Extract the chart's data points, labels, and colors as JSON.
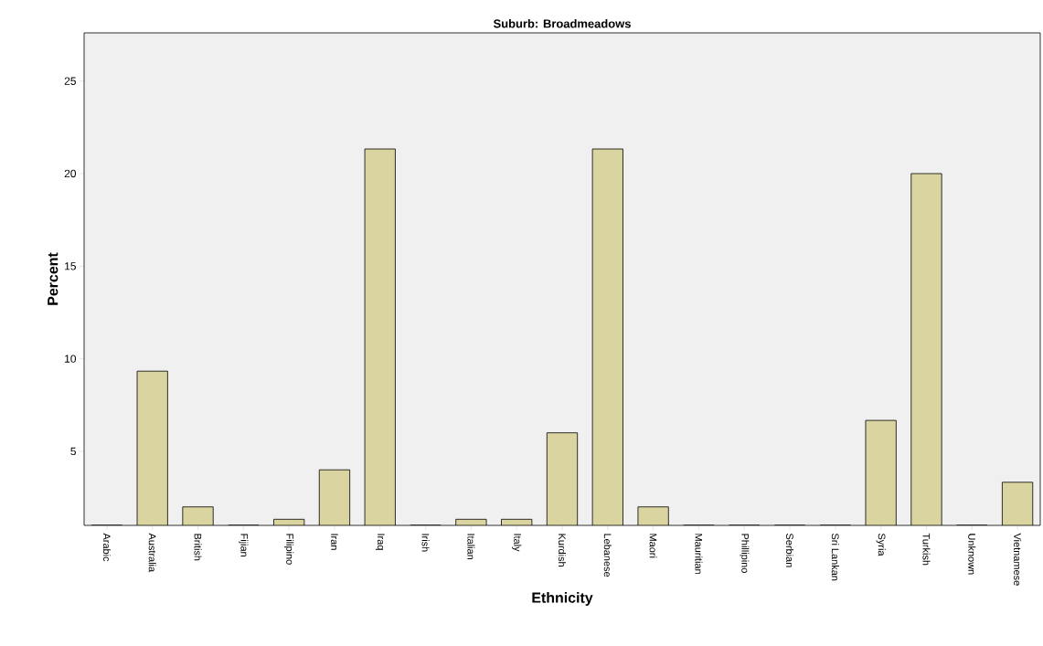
{
  "chart_data": {
    "type": "bar",
    "title": "Suburb: Broadmeadows",
    "xlabel": "Ethnicity",
    "ylabel": "Percent",
    "categories": [
      "Arabic",
      "Australia",
      "British",
      "Fijian",
      "Filipino",
      "Iran",
      "Iraq",
      "Irish",
      "Italian",
      "Italy",
      "Kurdish",
      "Lebanese",
      "Maori",
      "Mauritian",
      "Phillipino",
      "Serbian",
      "Sri Lankan",
      "Syria",
      "Turkish",
      "Unknown",
      "Vietnamese"
    ],
    "values": [
      1,
      9.33,
      2,
      1,
      1.33,
      4,
      21.33,
      1,
      1.33,
      1.33,
      6,
      21.33,
      2,
      1,
      1,
      1,
      1,
      6.67,
      20,
      1,
      3.33
    ],
    "color": "#d9d4a0",
    "ylim": [
      1,
      27.6
    ],
    "yticks": [
      5,
      10,
      15,
      20,
      25
    ],
    "grid": false
  }
}
